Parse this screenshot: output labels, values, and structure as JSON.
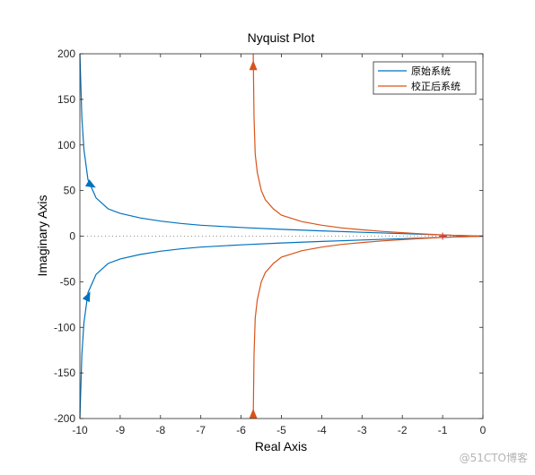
{
  "chart_data": {
    "type": "line",
    "title": "Nyquist Plot",
    "xlabel": "Real Axis",
    "ylabel": "Imaginary Axis",
    "xlim": [
      -10,
      0
    ],
    "ylim": [
      -200,
      200
    ],
    "xticks": [
      -10,
      -9,
      -8,
      -7,
      -6,
      -5,
      -4,
      -3,
      -2,
      -1,
      0
    ],
    "yticks": [
      -200,
      -150,
      -100,
      -50,
      0,
      50,
      100,
      150,
      200
    ],
    "grid": false,
    "legend_position": "top-right",
    "critical_point": [
      -1,
      0
    ],
    "series": [
      {
        "name": "原始系统",
        "color": "#0072BD",
        "x": [
          -10.0,
          -9.95,
          -9.9,
          -9.8,
          -9.6,
          -9.3,
          -9.0,
          -8.5,
          -8.0,
          -7.5,
          -7.0,
          -6.0,
          -5.0,
          -4.0,
          -3.0,
          -2.0,
          -1.0,
          -0.5,
          0.0
        ],
        "y": [
          200,
          130,
          95,
          62,
          42,
          30,
          25,
          20,
          16.5,
          14,
          12,
          9.5,
          7.5,
          5.8,
          4.2,
          2.8,
          1.3,
          0.6,
          0
        ]
      },
      {
        "name": "校正后系统",
        "color": "#D95319",
        "x": [
          -5.7,
          -5.68,
          -5.65,
          -5.6,
          -5.5,
          -5.4,
          -5.2,
          -5.0,
          -4.5,
          -4.0,
          -3.5,
          -3.0,
          -2.5,
          -2.0,
          -1.5,
          -1.0,
          -0.5,
          0.0
        ],
        "y": [
          200,
          130,
          90,
          70,
          50,
          40,
          30,
          23,
          16,
          12,
          9,
          7,
          5.2,
          3.8,
          2.5,
          1.4,
          0.6,
          0
        ]
      }
    ],
    "mirror_negative_frequency": true
  },
  "watermark": "@51CTO博客"
}
